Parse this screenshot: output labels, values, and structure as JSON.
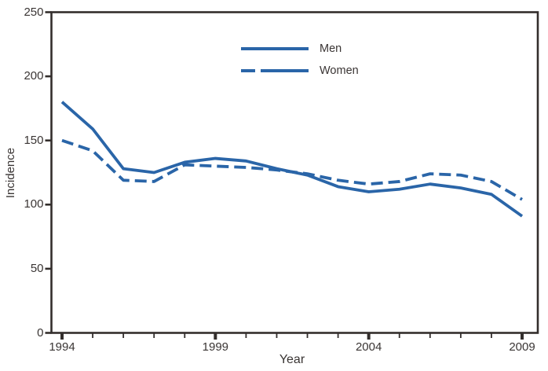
{
  "chart_data": {
    "type": "line",
    "title": "",
    "xlabel": "Year",
    "ylabel": "Incidence",
    "x": [
      1994,
      1995,
      1996,
      1997,
      1998,
      1999,
      2000,
      2001,
      2002,
      2003,
      2004,
      2005,
      2006,
      2007,
      2008,
      2009
    ],
    "series": [
      {
        "name": "Men",
        "style": "solid",
        "values": [
          180,
          159,
          128,
          125,
          133,
          136,
          134,
          128,
          123,
          114,
          110,
          112,
          116,
          113,
          108,
          91
        ]
      },
      {
        "name": "Women",
        "style": "dashed",
        "values": [
          150,
          142,
          119,
          118,
          131,
          130,
          129,
          127,
          124,
          119,
          116,
          118,
          124,
          123,
          118,
          104
        ]
      }
    ],
    "ylim": [
      0,
      250
    ],
    "y_ticks": [
      0,
      50,
      100,
      150,
      200,
      250
    ],
    "x_major_ticks": [
      1994,
      1999,
      2004,
      2009
    ],
    "x_minor_tick_interval": 1,
    "grid": false,
    "legend_position": "top-center",
    "line_color": "#2A65A8",
    "axis_color": "#332E2C",
    "text_color": "#3A3534"
  },
  "legend": {
    "items": [
      {
        "label": "Men"
      },
      {
        "label": "Women"
      }
    ]
  }
}
